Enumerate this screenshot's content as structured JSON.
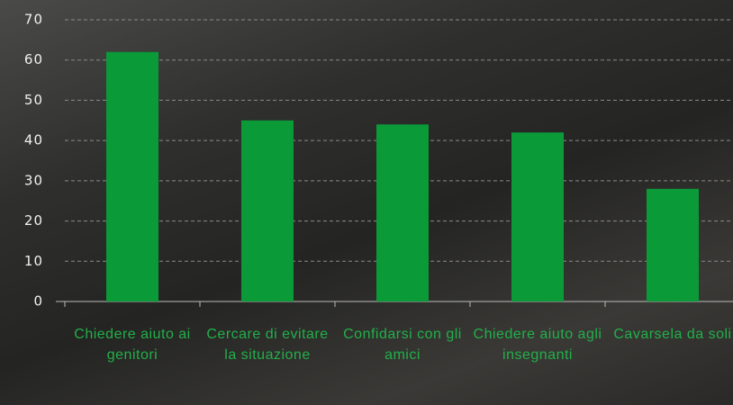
{
  "chart_data": {
    "type": "bar",
    "categories": [
      "Chiedere aiuto ai genitori",
      "Cercare di evitare la situazione",
      "Confidarsi con gli amici",
      "Chiedere aiuto agli insegnanti",
      "Cavarsela da soli"
    ],
    "values": [
      62,
      45,
      44,
      42,
      28
    ],
    "color": "#0b9a38",
    "ylim": [
      0,
      70
    ],
    "yticks": [
      0,
      10,
      20,
      30,
      40,
      50,
      60,
      70
    ],
    "grid": true
  }
}
